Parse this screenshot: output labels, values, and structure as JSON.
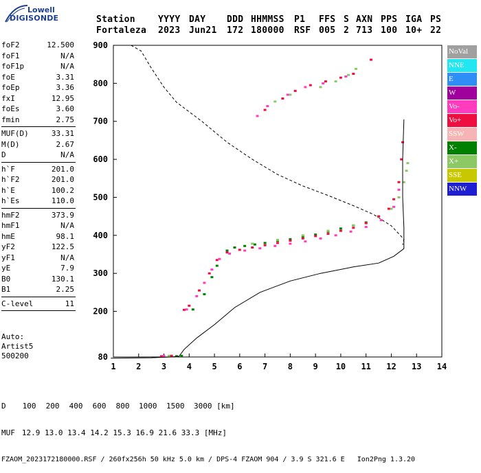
{
  "logo": {
    "line1": "Lowell",
    "line2": "DIGISONDE"
  },
  "header": {
    "labels": [
      "Station",
      "YYYY",
      "DAY",
      "DDD",
      "HHMMSS",
      "P1",
      "FFS",
      "S",
      "AXN",
      "PPS",
      "IGA",
      "PS"
    ],
    "values": [
      "Fortaleza",
      "2023",
      "Jun21",
      "172",
      "180000",
      "RSF",
      "005",
      "2",
      "713",
      "100",
      "10+",
      "22"
    ]
  },
  "params": {
    "group1": [
      {
        "label": "foF2",
        "value": "12.500"
      },
      {
        "label": "foF1",
        "value": "N/A"
      },
      {
        "label": "foF1p",
        "value": "N/A"
      },
      {
        "label": "foE",
        "value": "3.31"
      },
      {
        "label": "foEp",
        "value": "3.36"
      },
      {
        "label": "fxI",
        "value": "12.95"
      },
      {
        "label": "foEs",
        "value": "3.60"
      },
      {
        "label": "fmin",
        "value": "2.75"
      }
    ],
    "group2": [
      {
        "label": "MUF(D)",
        "value": "33.31"
      },
      {
        "label": "M(D)",
        "value": "2.67"
      },
      {
        "label": "D",
        "value": "N/A"
      }
    ],
    "group3": [
      {
        "label": "h`F",
        "value": "201.0"
      },
      {
        "label": "h`F2",
        "value": "201.0"
      },
      {
        "label": "h`E",
        "value": "100.2"
      },
      {
        "label": "h`Es",
        "value": "110.0"
      }
    ],
    "group4": [
      {
        "label": "hmF2",
        "value": "373.9"
      },
      {
        "label": "hmF1",
        "value": "N/A"
      },
      {
        "label": "hmE",
        "value": "98.1"
      },
      {
        "label": "yF2",
        "value": "122.5"
      },
      {
        "label": "yF1",
        "value": "N/A"
      },
      {
        "label": "yE",
        "value": "7.9"
      },
      {
        "label": "B0",
        "value": "130.1"
      },
      {
        "label": "B1",
        "value": "2.25"
      }
    ],
    "group5": [
      {
        "label": "C-level",
        "value": "11"
      }
    ]
  },
  "auto": {
    "line1": "Auto:",
    "line2": "Artist5",
    "line3": "500200"
  },
  "legend": [
    {
      "label": "NoVal",
      "color": "#a0a0a0"
    },
    {
      "label": "NNE",
      "color": "#22e6f0"
    },
    {
      "label": "E",
      "color": "#2e8ef6"
    },
    {
      "label": "W",
      "color": "#a0009c"
    },
    {
      "label": "Vo-",
      "color": "#ff3cbe"
    },
    {
      "label": "Vo+",
      "color": "#ee0f40"
    },
    {
      "label": "SSW",
      "color": "#f7b4b4"
    },
    {
      "label": "X-",
      "color": "#008000"
    },
    {
      "label": "X+",
      "color": "#8cc864"
    },
    {
      "label": "SSE",
      "color": "#c8c800"
    },
    {
      "label": "NNW",
      "color": "#1e1ed2"
    }
  ],
  "bottom": {
    "d_label": "D",
    "d_values": [
      "100",
      "200",
      "400",
      "600",
      "800",
      "1000",
      "1500",
      "3000"
    ],
    "d_unit": "[km]",
    "muf_label": "MUF",
    "muf_values": [
      "12.9",
      "13.0",
      "13.4",
      "14.2",
      "15.3",
      "16.9",
      "21.6",
      "33.3"
    ],
    "muf_unit": "[MHz]",
    "footer": "FZAOM_2023172180000.RSF / 260fx256h 50 kHz 5.0 km / DPS-4 FZAOM 904 / 3.9 S 321.6 E   Ion2Png 1.3.20"
  },
  "chart_data": {
    "type": "scatter",
    "title": "",
    "xlabel": "",
    "ylabel": "",
    "xlim": [
      1,
      14
    ],
    "ylim": [
      80,
      900
    ],
    "x_ticks": [
      1,
      2,
      3,
      4,
      5,
      6,
      7,
      8,
      9,
      10,
      11,
      12,
      13,
      14
    ],
    "y_ticks": [
      80,
      200,
      300,
      400,
      500,
      600,
      700,
      800,
      900
    ],
    "grid": false,
    "legend": "right",
    "series": [
      {
        "name": "X-",
        "color": "#008000",
        "points": [
          [
            3.5,
            82
          ],
          [
            3.7,
            83
          ],
          [
            4.15,
            205
          ],
          [
            4.6,
            245
          ],
          [
            4.9,
            290
          ],
          [
            5.1,
            320
          ],
          [
            5.5,
            360
          ],
          [
            5.8,
            368
          ],
          [
            6.2,
            372
          ],
          [
            6.6,
            376
          ],
          [
            7.0,
            380
          ],
          [
            7.5,
            386
          ],
          [
            8.0,
            390
          ],
          [
            8.5,
            396
          ],
          [
            9.0,
            402
          ],
          [
            9.5,
            410
          ],
          [
            10.0,
            418
          ],
          [
            10.5,
            426
          ],
          [
            11.0,
            434
          ]
        ]
      },
      {
        "name": "X+",
        "color": "#8cc864",
        "points": [
          [
            3.2,
            83
          ],
          [
            6.5,
            378
          ],
          [
            7.5,
            388
          ],
          [
            8.5,
            400
          ],
          [
            9.5,
            412
          ],
          [
            10.5,
            426
          ],
          [
            11.5,
            448
          ],
          [
            12.0,
            470
          ],
          [
            12.3,
            500
          ],
          [
            12.5,
            540
          ],
          [
            12.6,
            570
          ],
          [
            12.65,
            590
          ],
          [
            9.2,
            790
          ],
          [
            9.8,
            805
          ],
          [
            10.3,
            822
          ],
          [
            10.6,
            838
          ],
          [
            7.4,
            752
          ],
          [
            8.0,
            770
          ]
        ]
      },
      {
        "name": "Vo+",
        "color": "#ee0f40",
        "points": [
          [
            2.9,
            82
          ],
          [
            3.3,
            83
          ],
          [
            3.8,
            204
          ],
          [
            4.0,
            215
          ],
          [
            4.4,
            255
          ],
          [
            4.8,
            300
          ],
          [
            5.1,
            335
          ],
          [
            5.5,
            355
          ],
          [
            6.0,
            362
          ],
          [
            6.5,
            368
          ],
          [
            7.0,
            374
          ],
          [
            7.5,
            380
          ],
          [
            8.0,
            386
          ],
          [
            8.5,
            392
          ],
          [
            9.0,
            398
          ],
          [
            9.5,
            404
          ],
          [
            10.0,
            412
          ],
          [
            10.5,
            420
          ],
          [
            11.0,
            432
          ],
          [
            11.5,
            450
          ],
          [
            11.9,
            470
          ],
          [
            12.1,
            495
          ],
          [
            12.3,
            540
          ],
          [
            12.4,
            600
          ],
          [
            12.45,
            645
          ],
          [
            7.0,
            730
          ],
          [
            7.7,
            760
          ],
          [
            8.2,
            780
          ],
          [
            8.8,
            795
          ],
          [
            9.4,
            805
          ],
          [
            10.0,
            815
          ],
          [
            10.5,
            825
          ],
          [
            11.2,
            862
          ]
        ]
      },
      {
        "name": "Vo-",
        "color": "#ff3cbe",
        "points": [
          [
            3.0,
            83
          ],
          [
            3.9,
            205
          ],
          [
            4.3,
            240
          ],
          [
            4.6,
            275
          ],
          [
            4.9,
            310
          ],
          [
            5.2,
            338
          ],
          [
            5.6,
            352
          ],
          [
            6.2,
            360
          ],
          [
            6.8,
            366
          ],
          [
            7.4,
            372
          ],
          [
            8.0,
            378
          ],
          [
            8.6,
            384
          ],
          [
            9.2,
            392
          ],
          [
            9.8,
            400
          ],
          [
            10.4,
            410
          ],
          [
            11.0,
            422
          ],
          [
            11.6,
            440
          ],
          [
            12.1,
            475
          ],
          [
            12.3,
            520
          ],
          [
            6.7,
            714
          ],
          [
            7.1,
            740
          ],
          [
            7.9,
            770
          ],
          [
            8.6,
            790
          ],
          [
            9.3,
            800
          ],
          [
            10.2,
            818
          ]
        ]
      }
    ],
    "profile_line": [
      [
        0.9,
        77
      ],
      [
        2.5,
        78
      ],
      [
        3.3,
        80
      ],
      [
        3.6,
        82
      ],
      [
        3.8,
        100
      ],
      [
        4.3,
        130
      ],
      [
        5.0,
        165
      ],
      [
        5.8,
        210
      ],
      [
        6.8,
        250
      ],
      [
        8.0,
        280
      ],
      [
        9.2,
        300
      ],
      [
        10.5,
        317
      ],
      [
        11.5,
        327
      ],
      [
        12.1,
        345
      ],
      [
        12.5,
        365
      ],
      [
        12.5,
        395
      ],
      [
        12.5,
        420
      ],
      [
        12.45,
        500
      ],
      [
        12.45,
        600
      ],
      [
        12.5,
        705
      ]
    ],
    "dashed_curve": [
      [
        1.7,
        900
      ],
      [
        2.1,
        885
      ],
      [
        2.5,
        840
      ],
      [
        3.0,
        790
      ],
      [
        3.5,
        750
      ],
      [
        4.5,
        700
      ],
      [
        5.5,
        645
      ],
      [
        6.5,
        600
      ],
      [
        7.5,
        560
      ],
      [
        8.5,
        530
      ],
      [
        9.5,
        505
      ],
      [
        10.5,
        478
      ],
      [
        11.3,
        455
      ],
      [
        12.0,
        425
      ],
      [
        12.5,
        390
      ],
      [
        12.45,
        375
      ]
    ]
  }
}
